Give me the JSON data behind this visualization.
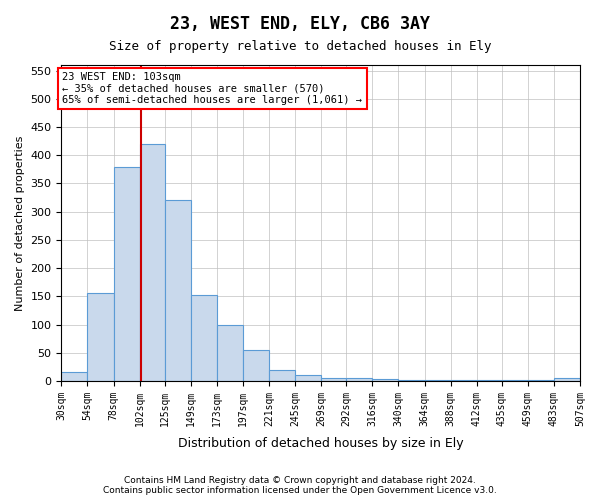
{
  "title": "23, WEST END, ELY, CB6 3AY",
  "subtitle": "Size of property relative to detached houses in Ely",
  "xlabel": "Distribution of detached houses by size in Ely",
  "ylabel": "Number of detached properties",
  "footer_line1": "Contains HM Land Registry data © Crown copyright and database right 2024.",
  "footer_line2": "Contains public sector information licensed under the Open Government Licence v3.0.",
  "property_size": 103,
  "annotation_line1": "23 WEST END: 103sqm",
  "annotation_line2": "← 35% of detached houses are smaller (570)",
  "annotation_line3": "65% of semi-detached houses are larger (1,061) →",
  "bar_color": "#c9d9ec",
  "bar_edge_color": "#5b9bd5",
  "vline_color": "#cc0000",
  "grid_color": "#c0c0c0",
  "bins": [
    30,
    54,
    78,
    102,
    125,
    149,
    173,
    197,
    221,
    245,
    269,
    292,
    316,
    340,
    364,
    388,
    412,
    435,
    459,
    483,
    507
  ],
  "bin_labels": [
    "30sqm",
    "54sqm",
    "78sqm",
    "102sqm",
    "125sqm",
    "149sqm",
    "173sqm",
    "197sqm",
    "221sqm",
    "245sqm",
    "269sqm",
    "292sqm",
    "316sqm",
    "340sqm",
    "364sqm",
    "388sqm",
    "412sqm",
    "435sqm",
    "459sqm",
    "483sqm",
    "507sqm"
  ],
  "counts": [
    15,
    155,
    380,
    420,
    320,
    153,
    100,
    55,
    20,
    10,
    5,
    5,
    3,
    2,
    2,
    1,
    1,
    1,
    1,
    5
  ],
  "ylim": [
    0,
    560
  ],
  "yticks": [
    0,
    50,
    100,
    150,
    200,
    250,
    300,
    350,
    400,
    450,
    500,
    550
  ]
}
